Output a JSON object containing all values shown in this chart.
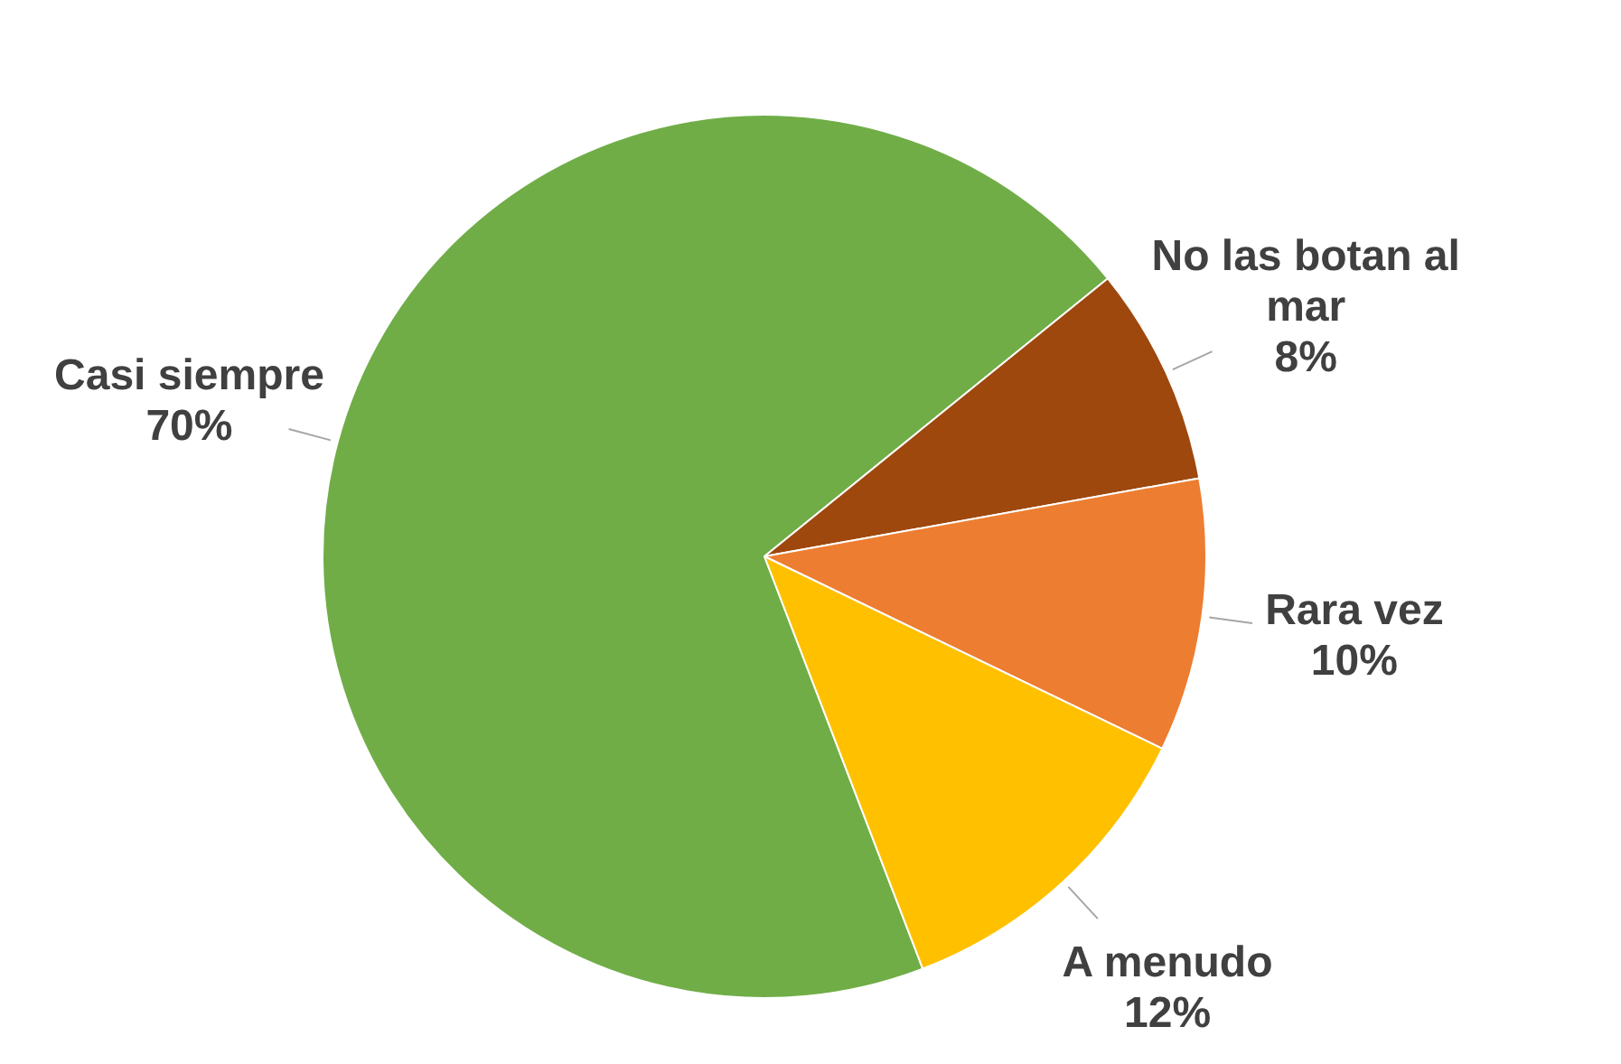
{
  "chart_data": {
    "type": "pie",
    "categories": [
      "Casi siempre",
      "No las botan al mar",
      "Rara vez",
      "A menudo"
    ],
    "values": [
      70,
      8,
      10,
      12
    ],
    "colors": [
      "#70ad47",
      "#9e480e",
      "#ed7d31",
      "#ffc000"
    ],
    "value_labels": [
      "70%",
      "8%",
      "10%",
      "12%"
    ],
    "legend": false
  }
}
